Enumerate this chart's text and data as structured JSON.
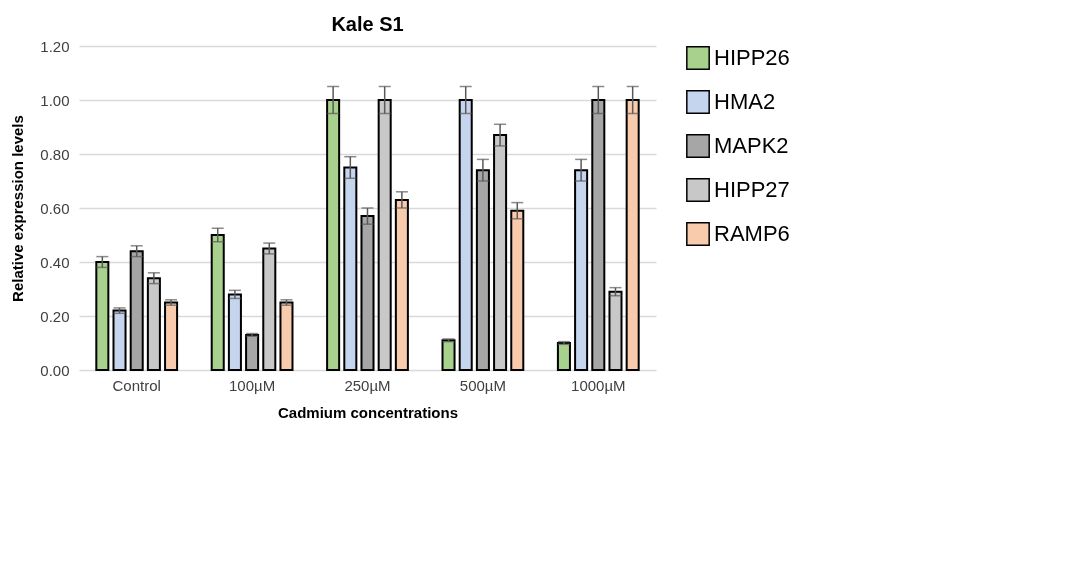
{
  "chart_data": {
    "type": "bar",
    "title": "Kale S1",
    "xlabel": "Cadmium concentrations",
    "ylabel": "Relative expression levels",
    "categories": [
      "Control",
      "100µM",
      "250µM",
      "500µM",
      "1000µM"
    ],
    "series": [
      {
        "name": "HIPP26",
        "color": "#a9d18e",
        "values": [
          0.4,
          0.5,
          1.0,
          0.11,
          0.1
        ],
        "errors": [
          0.02,
          0.025,
          0.05,
          0.005,
          0.005
        ]
      },
      {
        "name": "HMA2",
        "color": "#c5d5ee",
        "values": [
          0.22,
          0.28,
          0.75,
          1.0,
          0.74
        ],
        "errors": [
          0.01,
          0.015,
          0.04,
          0.05,
          0.04
        ]
      },
      {
        "name": "MAPK2",
        "color": "#a6a6a6",
        "values": [
          0.44,
          0.13,
          0.57,
          0.74,
          1.0
        ],
        "errors": [
          0.02,
          0.005,
          0.03,
          0.04,
          0.05
        ]
      },
      {
        "name": "HIPP27",
        "color": "#c8c8c8",
        "values": [
          0.34,
          0.45,
          1.0,
          0.87,
          0.29
        ],
        "errors": [
          0.02,
          0.02,
          0.05,
          0.04,
          0.015
        ]
      },
      {
        "name": "RAMP6",
        "color": "#f8cbad",
        "values": [
          0.25,
          0.25,
          0.63,
          0.59,
          1.0
        ],
        "errors": [
          0.01,
          0.01,
          0.03,
          0.03,
          0.05
        ]
      }
    ],
    "ylim": [
      0,
      1.2
    ],
    "yticks": [
      {
        "value": 0,
        "label": "0.00"
      },
      {
        "value": 0.2,
        "label": "0.20"
      },
      {
        "value": 0.4,
        "label": "0.40"
      },
      {
        "value": 0.6,
        "label": "0.60"
      },
      {
        "value": 0.8,
        "label": "0.80"
      },
      {
        "value": 1.0,
        "label": "1.00"
      },
      {
        "value": 1.2,
        "label": "1.20"
      }
    ],
    "grid": "y",
    "legend": "right"
  }
}
